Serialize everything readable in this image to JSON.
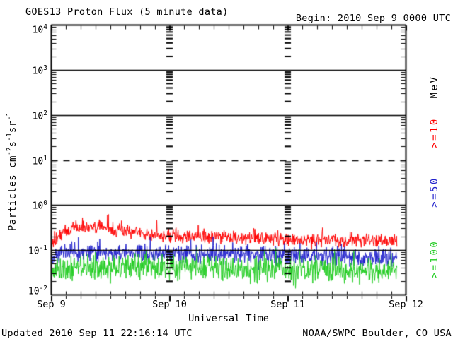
{
  "header": {
    "title": "GOES13 Proton Flux (5 minute data)",
    "begin": "Begin: 2010 Sep 9 0000 UTC"
  },
  "footer": {
    "updated": "Updated 2010 Sep 11 22:16:14 UTC",
    "credit": "NOAA/SWPC Boulder, CO USA"
  },
  "chart_data": {
    "type": "line",
    "title": "GOES13 Proton Flux (5 minute data)",
    "xlabel": "Universal Time",
    "ylabel": "Particles cm^-2s^-1sr^-1",
    "legend_unit": "MeV",
    "x_ticks": [
      "Sep 9",
      "Sep 10",
      "Sep 11",
      "Sep 12"
    ],
    "y_ticks": [
      "10^4",
      "10^3",
      "10^2",
      "10^1",
      "10^0",
      "10^-1",
      "10^-2"
    ],
    "ylim_exp": [
      -2,
      4
    ],
    "x_span_days": 3,
    "cadence_minutes": 5,
    "data_end_day": 2.927,
    "grid": {
      "solid_exp": [
        3,
        2,
        0,
        -1
      ],
      "dashed_exp": [
        1
      ],
      "day_guides": [
        1,
        2
      ],
      "x_minor_hours": 3
    },
    "series": [
      {
        "label": ">=10",
        "color": "#ff0000",
        "noise_dex": 0.09,
        "trend_day_flux": [
          [
            0,
            0.13
          ],
          [
            0.05,
            0.18
          ],
          [
            0.1,
            0.26
          ],
          [
            0.2,
            0.31
          ],
          [
            0.3,
            0.33
          ],
          [
            0.4,
            0.32
          ],
          [
            0.5,
            0.3
          ],
          [
            0.65,
            0.26
          ],
          [
            0.8,
            0.23
          ],
          [
            1.0,
            0.21
          ],
          [
            1.3,
            0.2
          ],
          [
            1.6,
            0.185
          ],
          [
            1.9,
            0.175
          ],
          [
            2.2,
            0.17
          ],
          [
            2.5,
            0.165
          ],
          [
            2.927,
            0.16
          ]
        ]
      },
      {
        "label": ">=50",
        "color": "#2222cc",
        "noise_dex": 0.12,
        "trend_day_flux": [
          [
            0,
            0.075
          ],
          [
            0.2,
            0.085
          ],
          [
            0.5,
            0.088
          ],
          [
            0.8,
            0.082
          ],
          [
            1.2,
            0.08
          ],
          [
            1.6,
            0.078
          ],
          [
            2.0,
            0.075
          ],
          [
            2.4,
            0.072
          ],
          [
            2.927,
            0.066
          ]
        ]
      },
      {
        "label": ">=100",
        "color": "#22cc22",
        "noise_dex": 0.16,
        "trend_day_flux": [
          [
            0,
            0.036
          ],
          [
            0.3,
            0.042
          ],
          [
            0.7,
            0.04
          ],
          [
            1.2,
            0.04
          ],
          [
            1.7,
            0.038
          ],
          [
            2.2,
            0.037
          ],
          [
            2.927,
            0.034
          ]
        ]
      }
    ]
  }
}
